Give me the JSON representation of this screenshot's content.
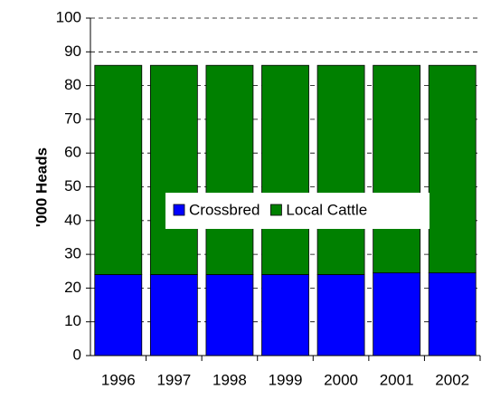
{
  "chart_data": {
    "type": "stacked_bar",
    "ylabel": "'000 Heads",
    "categories": [
      "1996",
      "1997",
      "1998",
      "1999",
      "2000",
      "2001",
      "2002"
    ],
    "series": [
      {
        "name": "Crossbred",
        "color": "#0000ff",
        "values": [
          24,
          24,
          24,
          24,
          24,
          24.5,
          24.5
        ]
      },
      {
        "name": "Local Cattle",
        "color": "#008000",
        "values": [
          62,
          62,
          62,
          62,
          62,
          61.5,
          61.5
        ]
      }
    ],
    "ylim": [
      0,
      100
    ],
    "yticks": [
      0,
      10,
      20,
      30,
      40,
      50,
      60,
      70,
      80,
      90,
      100
    ],
    "grid": true,
    "legend": "center"
  }
}
